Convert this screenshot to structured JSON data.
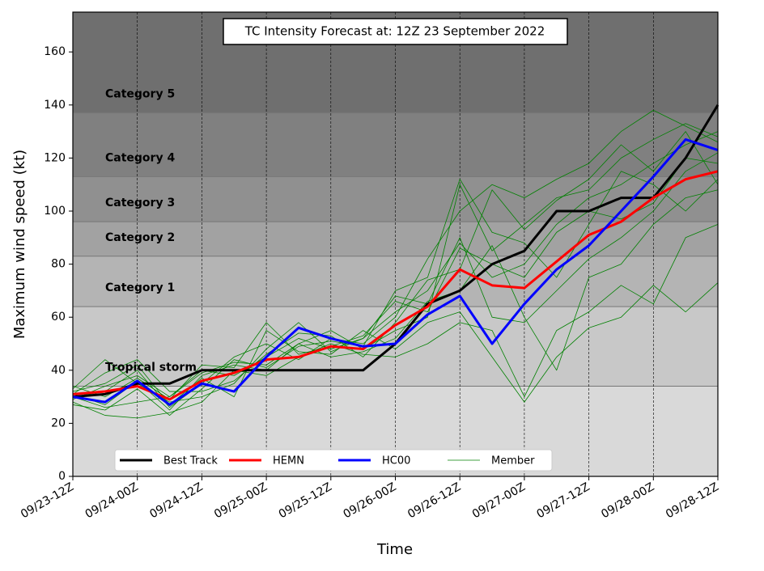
{
  "chart_data": {
    "type": "line",
    "title": "TC Intensity Forecast at: 12Z 23 September 2022",
    "xlabel": "Time",
    "ylabel": "Maximum wind speed (kt)",
    "x": [
      0,
      6,
      12,
      18,
      24,
      30,
      36,
      42,
      48,
      54,
      60,
      66,
      72,
      78,
      84,
      90,
      96,
      102,
      108,
      114,
      120
    ],
    "xlim": [
      0,
      120
    ],
    "xticks": [
      {
        "value": 0,
        "label": "09/23-12Z"
      },
      {
        "value": 12,
        "label": "09/24-00Z"
      },
      {
        "value": 24,
        "label": "09/24-12Z"
      },
      {
        "value": 36,
        "label": "09/25-00Z"
      },
      {
        "value": 48,
        "label": "09/25-12Z"
      },
      {
        "value": 60,
        "label": "09/26-00Z"
      },
      {
        "value": 72,
        "label": "09/26-12Z"
      },
      {
        "value": 84,
        "label": "09/27-00Z"
      },
      {
        "value": 96,
        "label": "09/27-12Z"
      },
      {
        "value": 108,
        "label": "09/28-00Z"
      },
      {
        "value": 120,
        "label": "09/28-12Z"
      }
    ],
    "ylim": [
      0,
      175
    ],
    "yticks": [
      0,
      20,
      40,
      60,
      80,
      100,
      120,
      140,
      160
    ],
    "background": "#d9d9d9",
    "bands": [
      {
        "name": "Tropical storm",
        "from": 34,
        "to": 64,
        "color": "#c8c8c8"
      },
      {
        "name": "Category 1",
        "from": 64,
        "to": 83,
        "color": "#b4b4b4"
      },
      {
        "name": "Category 2",
        "from": 83,
        "to": 96,
        "color": "#a2a2a2"
      },
      {
        "name": "Category 3",
        "from": 96,
        "to": 113,
        "color": "#909090"
      },
      {
        "name": "Category 4",
        "from": 113,
        "to": 137,
        "color": "#808080"
      },
      {
        "name": "Category 5",
        "from": 137,
        "to": 175,
        "color": "#6f6f6f"
      }
    ],
    "series": [
      {
        "name": "Best Track",
        "color": "#000000",
        "values": [
          30,
          31,
          35,
          35,
          40,
          40,
          40,
          40,
          40,
          40,
          50,
          65,
          70,
          80,
          85,
          100,
          100,
          105,
          105,
          120,
          140
        ]
      },
      {
        "name": "HEMN",
        "color": "#ff0000",
        "values": [
          31,
          32,
          34,
          29,
          36,
          39,
          44,
          45,
          49,
          48,
          57,
          64,
          78,
          72,
          71,
          81,
          91,
          96,
          105,
          112,
          115
        ]
      },
      {
        "name": "HC00",
        "color": "#0000ff",
        "values": [
          30,
          28,
          36,
          27,
          35,
          32,
          45,
          56,
          52,
          49,
          50,
          61,
          68,
          50,
          65,
          78,
          87,
          100,
          113,
          127,
          123
        ]
      }
    ],
    "members": {
      "name": "Member",
      "color": "#008000",
      "values": [
        [
          29,
          34,
          38,
          30,
          40,
          38,
          45,
          52,
          48,
          52,
          62,
          70,
          88,
          75,
          80,
          95,
          105,
          110,
          118,
          125,
          130
        ],
        [
          31,
          27,
          36,
          25,
          38,
          42,
          40,
          50,
          55,
          48,
          55,
          60,
          110,
          85,
          95,
          105,
          108,
          120,
          127,
          133,
          128
        ],
        [
          33,
          44,
          35,
          28,
          30,
          35,
          48,
          58,
          47,
          52,
          68,
          65,
          90,
          60,
          58,
          70,
          82,
          90,
          100,
          115,
          122
        ],
        [
          28,
          23,
          22,
          24,
          28,
          40,
          38,
          45,
          50,
          46,
          45,
          50,
          58,
          55,
          30,
          55,
          62,
          72,
          65,
          90,
          95
        ],
        [
          30,
          32,
          40,
          26,
          35,
          45,
          50,
          44,
          52,
          50,
          60,
          82,
          100,
          110,
          105,
          112,
          118,
          130,
          138,
          132,
          126
        ],
        [
          32,
          35,
          42,
          27,
          37,
          30,
          55,
          47,
          46,
          55,
          48,
          58,
          62,
          45,
          28,
          45,
          56,
          60,
          72,
          62,
          73
        ],
        [
          27,
          25,
          33,
          23,
          33,
          44,
          41,
          49,
          51,
          49,
          70,
          75,
          112,
          92,
          88,
          75,
          95,
          115,
          110,
          100,
          112
        ],
        [
          34,
          30,
          37,
          29,
          42,
          41,
          58,
          46,
          49,
          53,
          66,
          62,
          86,
          80,
          75,
          92,
          100,
          97,
          103,
          120,
          118
        ],
        [
          30,
          26,
          28,
          30,
          39,
          43,
          42,
          50,
          45,
          47,
          52,
          66,
          70,
          87,
          60,
          40,
          75,
          80,
          95,
          105,
          108
        ],
        [
          31,
          39,
          44,
          32,
          32,
          36,
          46,
          54,
          53,
          45,
          58,
          74,
          78,
          108,
          93,
          104,
          112,
          125,
          115,
          130,
          110
        ]
      ]
    },
    "legend": "lower left"
  }
}
